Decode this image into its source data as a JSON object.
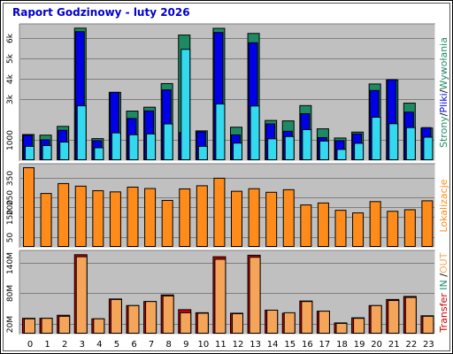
{
  "title": "Raport Godzinowy -  luty 2026",
  "colors": {
    "background": "#ffffff",
    "panel": "#c0c0c0",
    "grid": "#7f7f7f",
    "strony": "#1e8a64",
    "pliki": "#0000e6",
    "wywolania": "#33d9ef",
    "lokalizacje": "#ff8c1a",
    "transfer_in": "#d00000",
    "transfer_out": "#f5a55a",
    "title": "#0000cc"
  },
  "side_labels": {
    "top": [
      {
        "text": "Strony",
        "color": "#1e8a64"
      },
      {
        "text": "/",
        "color": "#000000"
      },
      {
        "text": "Pliki",
        "color": "#0000e6"
      },
      {
        "text": "/",
        "color": "#000000"
      },
      {
        "text": "Wywołania",
        "color": "#1e8a64"
      }
    ],
    "middle": [
      {
        "text": "Lokalizacje",
        "color": "#ff8c1a"
      }
    ],
    "bottom": [
      {
        "text": "Transfer",
        "color": "#d00000"
      },
      {
        "text": " IN ",
        "color": "#1e8a64"
      },
      {
        "text": "/",
        "color": "#000000"
      },
      {
        "text": "OUT",
        "color": "#f5a55a"
      }
    ]
  },
  "chart_data": [
    {
      "type": "bar",
      "panel": "top",
      "categories": [
        "0",
        "1",
        "2",
        "3",
        "4",
        "5",
        "6",
        "7",
        "8",
        "9",
        "10",
        "11",
        "12",
        "13",
        "14",
        "15",
        "16",
        "17",
        "18",
        "19",
        "20",
        "21",
        "22",
        "23"
      ],
      "ticks": [
        {
          "value": 1000,
          "label": "1000"
        },
        {
          "value": 3000,
          "label": "3k"
        },
        {
          "value": 4000,
          "label": "4k"
        },
        {
          "value": 5000,
          "label": "5k"
        },
        {
          "value": 6000,
          "label": "6k"
        }
      ],
      "ylim": [
        0,
        6600
      ],
      "series": [
        {
          "name": "Strony",
          "values": [
            1280,
            1250,
            1680,
            6500,
            1080,
            3350,
            2430,
            2620,
            3780,
            6160,
            1460,
            6490,
            1640,
            6240,
            1970,
            1950,
            2700,
            1560,
            1110,
            1400,
            3760,
            3960,
            2820,
            1600
          ]
        },
        {
          "name": "Pliki",
          "values": [
            1240,
            1020,
            1490,
            6330,
            980,
            3350,
            2070,
            2440,
            3470,
            1380,
            1410,
            6290,
            1260,
            5780,
            1800,
            1440,
            2300,
            1130,
            980,
            1310,
            3440,
            3970,
            2380,
            1620
          ]
        },
        {
          "name": "Wywołania",
          "values": [
            700,
            740,
            910,
            2690,
            630,
            1360,
            1270,
            1310,
            1800,
            5460,
            700,
            2780,
            860,
            2680,
            1070,
            1180,
            1520,
            960,
            550,
            850,
            2130,
            1810,
            1620,
            1150
          ]
        }
      ]
    },
    {
      "type": "bar",
      "panel": "middle",
      "categories": [
        "0",
        "1",
        "2",
        "3",
        "4",
        "5",
        "6",
        "7",
        "8",
        "9",
        "10",
        "11",
        "12",
        "13",
        "14",
        "15",
        "16",
        "17",
        "18",
        "19",
        "20",
        "21",
        "22",
        "23"
      ],
      "ticks": [
        {
          "value": 50,
          "label": "50"
        },
        {
          "value": 150,
          "label": "150"
        },
        {
          "value": 200,
          "label": "200"
        },
        {
          "value": 250,
          "label": "250"
        },
        {
          "value": 350,
          "label": "350"
        }
      ],
      "ylim": [
        0,
        411
      ],
      "series": [
        {
          "name": "Lokalizacje",
          "values": [
            402,
            272,
            322,
            309,
            286,
            280,
            304,
            297,
            237,
            295,
            311,
            349,
            283,
            296,
            278,
            291,
            214,
            224,
            187,
            174,
            231,
            182,
            190,
            235
          ]
        }
      ]
    },
    {
      "type": "bar",
      "panel": "bottom",
      "categories": [
        "0",
        "1",
        "2",
        "3",
        "4",
        "5",
        "6",
        "7",
        "8",
        "9",
        "10",
        "11",
        "12",
        "13",
        "14",
        "15",
        "16",
        "17",
        "18",
        "19",
        "20",
        "21",
        "22",
        "23"
      ],
      "ticks": [
        {
          "value": 20,
          "label": "20M"
        },
        {
          "value": 80,
          "label": "80M"
        },
        {
          "value": 140,
          "label": "140M"
        }
      ],
      "ylim": [
        0,
        160
      ],
      "series": [
        {
          "name": "IN",
          "values": [
            31,
            31,
            37,
            156,
            30,
            69,
            56,
            64,
            77,
            48,
            42,
            152,
            41,
            155,
            47,
            41,
            65,
            45,
            22,
            32,
            56,
            68,
            74,
            36
          ]
        },
        {
          "name": "OUT",
          "values": [
            30,
            31,
            35,
            152,
            30,
            68,
            56,
            64,
            75,
            42,
            41,
            147,
            40,
            151,
            47,
            42,
            64,
            45,
            21,
            31,
            56,
            66,
            72,
            35
          ]
        }
      ]
    }
  ]
}
